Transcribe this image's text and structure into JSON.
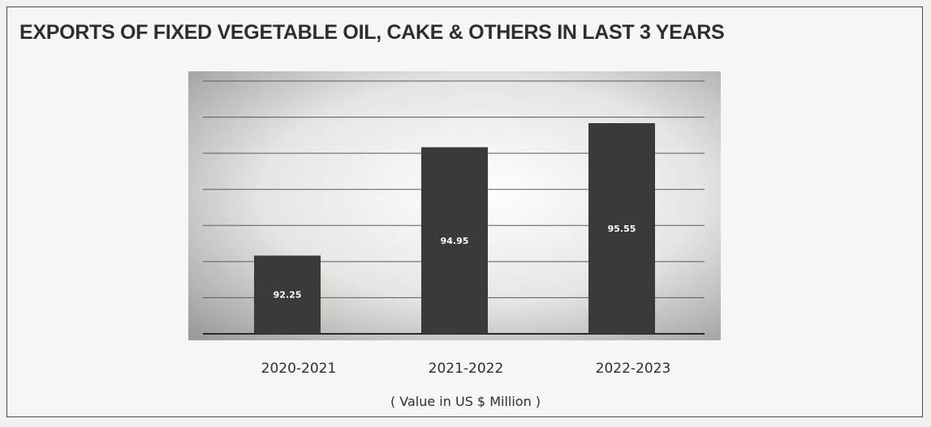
{
  "chart_data": {
    "type": "bar",
    "title": "EXPORTS OF FIXED VEGETABLE OIL, CAKE & OTHERS IN LAST 3 YEARS",
    "categories": [
      "2020-2021",
      "2021-2022",
      "2022-2023"
    ],
    "values": [
      92.25,
      94.95,
      95.55
    ],
    "data_labels": [
      "92.25",
      "94.95",
      "95.55"
    ],
    "unit_note": "( Value in US $ Million )",
    "xlabel": "",
    "ylabel": "",
    "ylim": [
      90.3,
      96.6
    ],
    "grid": true,
    "legend": "none",
    "bar_color": "#3a3a3a"
  }
}
